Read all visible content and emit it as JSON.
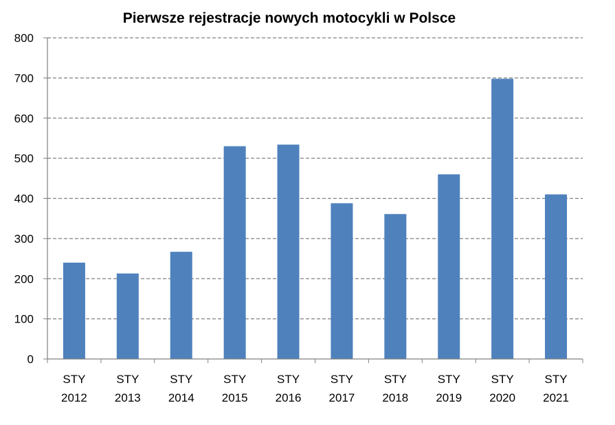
{
  "chart_data": {
    "type": "bar",
    "title": "Pierwsze rejestracje nowych motocykli w Polsce",
    "xlabel": "",
    "ylabel": "",
    "categories": [
      [
        "STY",
        "2012"
      ],
      [
        "STY",
        "2013"
      ],
      [
        "STY",
        "2014"
      ],
      [
        "STY",
        "2015"
      ],
      [
        "STY",
        "2016"
      ],
      [
        "STY",
        "2017"
      ],
      [
        "STY",
        "2018"
      ],
      [
        "STY",
        "2019"
      ],
      [
        "STY",
        "2020"
      ],
      [
        "STY",
        "2021"
      ]
    ],
    "values": [
      240,
      213,
      267,
      530,
      534,
      388,
      361,
      460,
      698,
      410
    ],
    "ylim": [
      0,
      800
    ],
    "yticks": [
      0,
      100,
      200,
      300,
      400,
      500,
      600,
      700,
      800
    ],
    "grid": true,
    "legend": "none",
    "bar_color": "#4F81BD",
    "grid_color": "#808080"
  }
}
